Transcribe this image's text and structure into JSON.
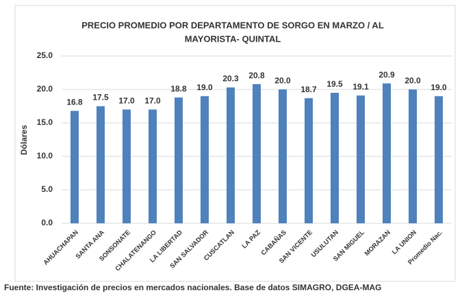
{
  "chart_data": {
    "type": "bar",
    "title": [
      "PRECIO PROMEDIO POR DEPARTAMENTO DE SORGO EN MARZO / AL",
      "MAYORISTA- QUINTAL"
    ],
    "y_label": "Dólares",
    "source": "Fuente: Investigación de precios en mercados nacionales. Base de datos SIMAGRO, DGEA-MAG",
    "categories": [
      "AHUACHAPAN",
      "SANTA ANA",
      "SONSONATE",
      "CHALATENANGO",
      "LA LIBERTAD",
      "SAN SALVADOR",
      "CUSCATLAN",
      "LA PAZ",
      "CABAÑAS",
      "SAN VICENTE",
      "USULUTAN",
      "SAN MIGUEL",
      "MORAZAN",
      "LA UNION",
      "Promedio Nac."
    ],
    "values": [
      16.8,
      17.5,
      17.0,
      17.0,
      18.8,
      19.0,
      20.3,
      20.8,
      20.0,
      18.7,
      19.5,
      19.1,
      20.9,
      20.0,
      19.0
    ],
    "value_labels": [
      "16.8",
      "17.5",
      "17.0",
      "17.0",
      "18.8",
      "19.0",
      "20.3",
      "20.8",
      "20.0",
      "18.7",
      "19.5",
      "19.1",
      "20.9",
      "20.0",
      "19.0"
    ],
    "color": "#4f81bd",
    "ylim": [
      0,
      25
    ],
    "yticks": [
      {
        "value": 0,
        "label": "0.0"
      },
      {
        "value": 5,
        "label": "5.0"
      },
      {
        "value": 10,
        "label": "10.0"
      },
      {
        "value": 15,
        "label": "15.0"
      },
      {
        "value": 20,
        "label": "20.0"
      },
      {
        "value": 25,
        "label": "25.0"
      }
    ],
    "grid": true
  }
}
